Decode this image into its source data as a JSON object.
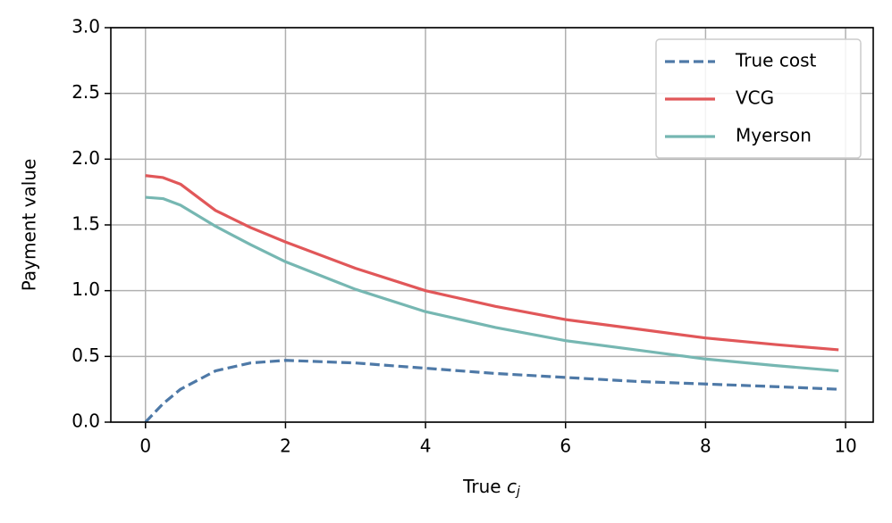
{
  "chart_data": {
    "type": "line",
    "x_label": {
      "text": "True",
      "var": "c",
      "sub": "j"
    },
    "y_label": "Payment value",
    "x": [
      0,
      0.25,
      0.5,
      1,
      1.5,
      2,
      3,
      4,
      5,
      6,
      7,
      8,
      9,
      9.9
    ],
    "series": [
      {
        "name": "True cost",
        "color": "#4e79a7",
        "dashed": true,
        "values": [
          0,
          0.14,
          0.25,
          0.39,
          0.45,
          0.47,
          0.45,
          0.41,
          0.37,
          0.34,
          0.31,
          0.29,
          0.27,
          0.25
        ]
      },
      {
        "name": "VCG",
        "color": "#e15759",
        "dashed": false,
        "values": [
          1.875,
          1.86,
          1.81,
          1.61,
          1.48,
          1.37,
          1.17,
          1.0,
          0.88,
          0.78,
          0.71,
          0.64,
          0.59,
          0.55
        ]
      },
      {
        "name": "Myerson",
        "color": "#76b7b2",
        "dashed": false,
        "values": [
          1.71,
          1.7,
          1.65,
          1.49,
          1.35,
          1.22,
          1.01,
          0.84,
          0.72,
          0.62,
          0.55,
          0.48,
          0.43,
          0.39
        ]
      }
    ],
    "xlim": [
      -0.495,
      10.395
    ],
    "ylim": [
      0,
      3
    ],
    "xticks": [
      0,
      2,
      4,
      6,
      8,
      10
    ],
    "yticks": [
      {
        "value": 0,
        "label": "0.0"
      },
      0.5,
      {
        "value": 1,
        "label": "1.0"
      },
      1.5,
      {
        "value": 2,
        "label": "2.0"
      },
      2.5,
      {
        "value": 3,
        "label": "3.0"
      }
    ],
    "grid": true,
    "legend": "upper right"
  }
}
